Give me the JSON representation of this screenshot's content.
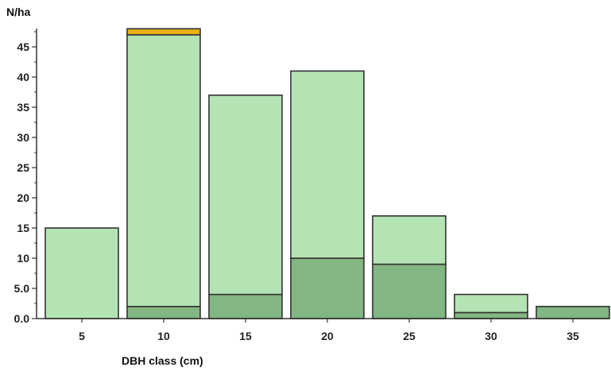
{
  "chart_data": {
    "type": "bar",
    "stacked": true,
    "title": "",
    "xlabel": "DBH class (cm)",
    "ylabel": "N/ha",
    "categories": [
      "5",
      "10",
      "15",
      "20",
      "25",
      "30",
      "35"
    ],
    "series": [
      {
        "values": [
          0,
          2,
          4,
          10,
          9,
          1,
          2
        ]
      },
      {
        "values": [
          15,
          45,
          33,
          31,
          8,
          3,
          0
        ]
      },
      {
        "values": [
          0,
          1,
          0,
          0,
          0,
          0,
          0
        ]
      }
    ],
    "ylim": [
      0,
      48
    ],
    "yticks": [
      "0.0",
      "5.0",
      "10",
      "15",
      "20",
      "25",
      "30",
      "35",
      "40",
      "45"
    ],
    "colors": [
      "#82b682",
      "#b4e4b4",
      "#e8b010"
    ],
    "grid": false,
    "legend": "none"
  }
}
